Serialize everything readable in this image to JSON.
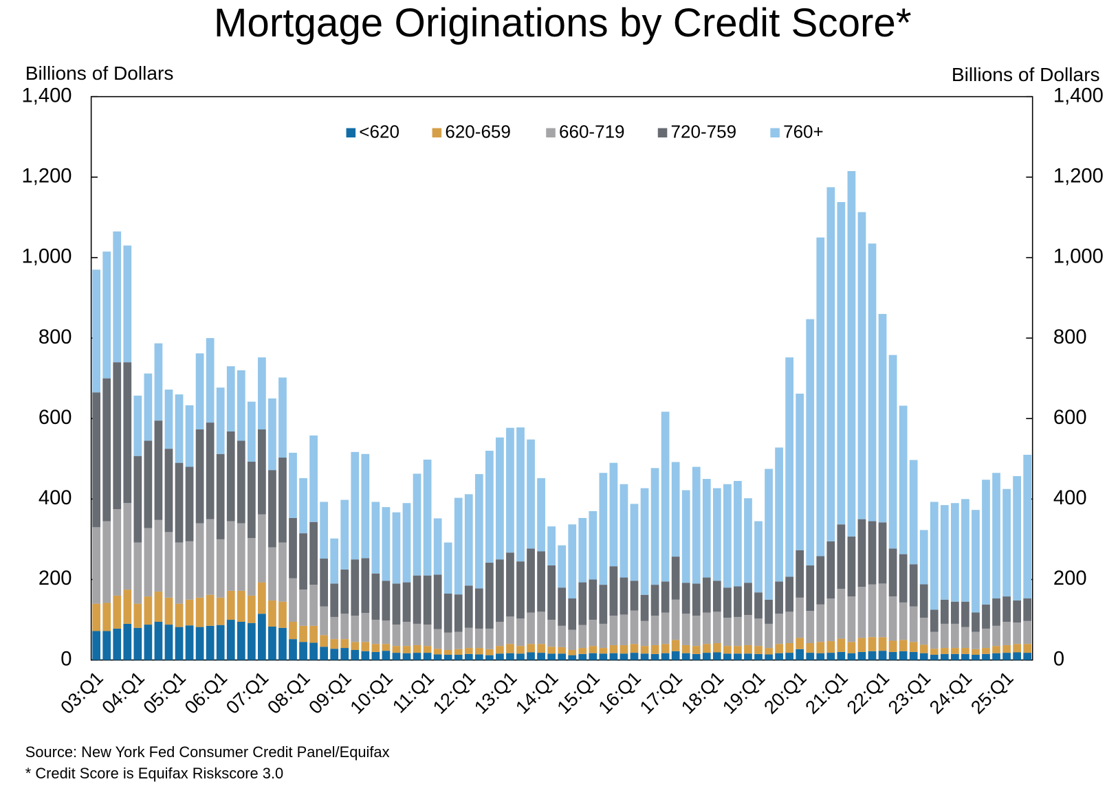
{
  "chart_data": {
    "type": "bar",
    "stacked": true,
    "title": "Mortgage Originations by Credit Score*",
    "y_label": "Billions of Dollars",
    "y2_label": "Billions of Dollars",
    "notes": [
      "Source: New York Fed Consumer Credit Panel/Equifax",
      "* Credit Score is Equifax Riskscore 3.0"
    ],
    "legend": "top",
    "ylim": [
      0,
      1400
    ],
    "yticks": [
      0,
      200,
      400,
      600,
      800,
      {
        "value": 1000,
        "label": "1,000"
      },
      {
        "value": 1200,
        "label": "1,200"
      },
      {
        "value": 1400,
        "label": "1,400"
      }
    ],
    "y2lim": [
      0,
      1400
    ],
    "y2ticks": [
      0,
      200,
      400,
      600,
      800,
      {
        "value": 1000,
        "label": "1,000"
      },
      {
        "value": 1200,
        "label": "1,200"
      },
      {
        "value": 1400,
        "label": "1,400"
      }
    ],
    "categories": [
      "03:Q1",
      null,
      null,
      null,
      "04:Q1",
      null,
      null,
      null,
      "05:Q1",
      null,
      null,
      null,
      "06:Q1",
      null,
      null,
      null,
      "07:Q1",
      null,
      null,
      null,
      "08:Q1",
      null,
      null,
      null,
      "09:Q1",
      null,
      null,
      null,
      "10:Q1",
      null,
      null,
      null,
      "11:Q1",
      null,
      null,
      null,
      "12:Q1",
      null,
      null,
      null,
      "13:Q1",
      null,
      null,
      null,
      "14:Q1",
      null,
      null,
      null,
      "15:Q1",
      null,
      null,
      null,
      "16:Q1",
      null,
      null,
      null,
      "17:Q1",
      null,
      null,
      null,
      "18:Q1",
      null,
      null,
      null,
      "19:Q1",
      null,
      null,
      null,
      "20:Q1",
      null,
      null,
      null,
      "21:Q1",
      null,
      null,
      null,
      "22:Q1",
      null,
      null,
      null,
      "23:Q1",
      null,
      null,
      null,
      "24:Q1",
      null,
      null,
      null,
      "25:Q1",
      null,
      null
    ],
    "series": [
      {
        "name": "<620",
        "color": "#126da6",
        "values": [
          72,
          72,
          78,
          90,
          80,
          88,
          95,
          88,
          82,
          86,
          82,
          85,
          87,
          100,
          95,
          92,
          115,
          83,
          80,
          52,
          45,
          43,
          33,
          28,
          30,
          25,
          22,
          20,
          23,
          18,
          17,
          18,
          18,
          14,
          13,
          13,
          15,
          14,
          12,
          16,
          17,
          16,
          19,
          18,
          16,
          16,
          12,
          15,
          17,
          16,
          17,
          16,
          18,
          16,
          15,
          17,
          22,
          17,
          15,
          18,
          19,
          16,
          16,
          16,
          15,
          14,
          17,
          18,
          27,
          18,
          17,
          18,
          20,
          17,
          20,
          22,
          23,
          20,
          22,
          20,
          17,
          13,
          15,
          15,
          15,
          13,
          15,
          17,
          18,
          19,
          18
        ]
      },
      {
        "name": "620-659",
        "color": "#d59f48",
        "values": [
          68,
          70,
          82,
          85,
          60,
          70,
          75,
          67,
          58,
          64,
          73,
          77,
          68,
          72,
          77,
          68,
          78,
          65,
          65,
          43,
          40,
          42,
          29,
          24,
          22,
          20,
          23,
          20,
          17,
          17,
          18,
          19,
          17,
          14,
          12,
          14,
          15,
          16,
          15,
          19,
          23,
          19,
          21,
          22,
          17,
          16,
          13,
          15,
          18,
          14,
          20,
          21,
          22,
          19,
          22,
          23,
          28,
          20,
          20,
          22,
          23,
          19,
          19,
          21,
          20,
          16,
          23,
          24,
          28,
          24,
          28,
          29,
          33,
          28,
          35,
          35,
          34,
          28,
          28,
          25,
          21,
          15,
          15,
          15,
          15,
          14,
          15,
          18,
          19,
          21,
          22
        ]
      },
      {
        "name": "660-719",
        "color": "#a5a5a8",
        "values": [
          190,
          203,
          215,
          215,
          152,
          170,
          178,
          163,
          152,
          145,
          185,
          188,
          145,
          173,
          168,
          143,
          169,
          132,
          147,
          108,
          90,
          102,
          71,
          55,
          63,
          65,
          72,
          60,
          58,
          53,
          60,
          53,
          53,
          49,
          43,
          43,
          50,
          48,
          51,
          60,
          68,
          68,
          78,
          80,
          67,
          53,
          50,
          57,
          65,
          60,
          73,
          76,
          83,
          62,
          73,
          78,
          100,
          78,
          75,
          78,
          78,
          70,
          72,
          75,
          68,
          60,
          75,
          78,
          100,
          80,
          93,
          106,
          124,
          113,
          127,
          131,
          133,
          110,
          93,
          88,
          67,
          42,
          60,
          60,
          52,
          43,
          48,
          50,
          58,
          53,
          57
        ]
      },
      {
        "name": "720-759",
        "color": "#676b72",
        "values": [
          335,
          355,
          365,
          350,
          215,
          217,
          247,
          207,
          198,
          185,
          233,
          240,
          212,
          223,
          205,
          190,
          211,
          192,
          211,
          150,
          140,
          156,
          119,
          83,
          110,
          140,
          136,
          115,
          99,
          102,
          98,
          120,
          122,
          135,
          97,
          93,
          105,
          100,
          164,
          155,
          159,
          142,
          159,
          150,
          135,
          95,
          78,
          106,
          100,
          97,
          123,
          92,
          74,
          65,
          77,
          77,
          107,
          77,
          80,
          87,
          77,
          75,
          76,
          80,
          65,
          60,
          80,
          87,
          118,
          113,
          120,
          142,
          160,
          149,
          168,
          157,
          152,
          119,
          120,
          105,
          83,
          55,
          60,
          55,
          63,
          48,
          60,
          68,
          63,
          55,
          56
        ]
      },
      {
        "name": "760+",
        "color": "#93c6ea",
        "values": [
          305,
          315,
          325,
          290,
          150,
          167,
          192,
          147,
          170,
          153,
          189,
          210,
          165,
          162,
          175,
          149,
          179,
          178,
          199,
          162,
          137,
          215,
          141,
          112,
          173,
          267,
          259,
          178,
          183,
          177,
          197,
          253,
          288,
          140,
          127,
          240,
          227,
          284,
          278,
          303,
          310,
          333,
          271,
          182,
          97,
          105,
          184,
          160,
          170,
          278,
          257,
          232,
          191,
          265,
          290,
          422,
          235,
          230,
          290,
          245,
          230,
          257,
          262,
          210,
          177,
          325,
          333,
          545,
          389,
          612,
          792,
          880,
          801,
          908,
          763,
          690,
          518,
          481,
          369,
          259,
          135,
          268,
          235,
          245,
          255,
          255,
          310,
          312,
          267,
          309,
          357
        ]
      }
    ]
  }
}
